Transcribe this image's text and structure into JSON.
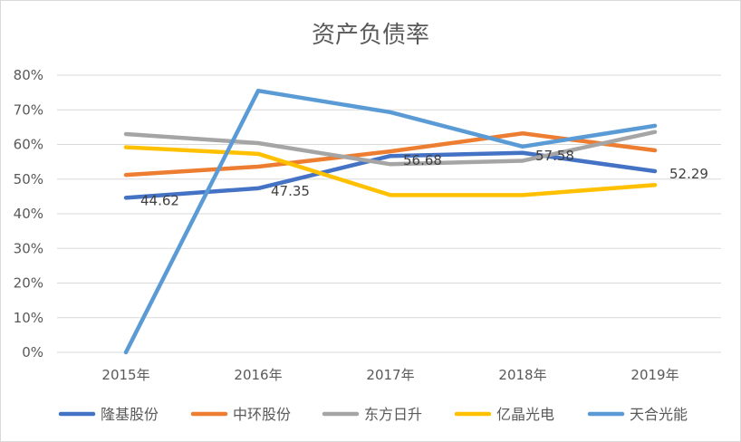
{
  "chart_data": {
    "type": "line",
    "title": "资产负债率",
    "categories": [
      "2015年",
      "2016年",
      "2017年",
      "2018年",
      "2019年"
    ],
    "y_ticks": [
      "0%",
      "10%",
      "20%",
      "30%",
      "40%",
      "50%",
      "60%",
      "70%",
      "80%"
    ],
    "ylim": [
      0,
      80
    ],
    "grid": true,
    "legend_position": "bottom",
    "series": [
      {
        "name": "隆基股份",
        "color": "#4472c4",
        "values": [
          44.62,
          47.35,
          56.68,
          57.58,
          52.29
        ],
        "labels": [
          "44.62",
          "47.35",
          "56.68",
          "57.58",
          "52.29"
        ]
      },
      {
        "name": "中环股份",
        "color": "#ed7d31",
        "values": [
          51.2,
          53.6,
          58.0,
          63.2,
          58.3
        ]
      },
      {
        "name": "东方日升",
        "color": "#a5a5a5",
        "values": [
          63.0,
          60.4,
          54.3,
          55.3,
          63.6
        ]
      },
      {
        "name": "亿晶光电",
        "color": "#ffc000",
        "values": [
          59.2,
          57.3,
          45.4,
          45.4,
          48.3
        ]
      },
      {
        "name": "天合光能",
        "color": "#5b9bd5",
        "values": [
          0,
          75.5,
          69.3,
          59.4,
          65.4
        ]
      }
    ]
  }
}
